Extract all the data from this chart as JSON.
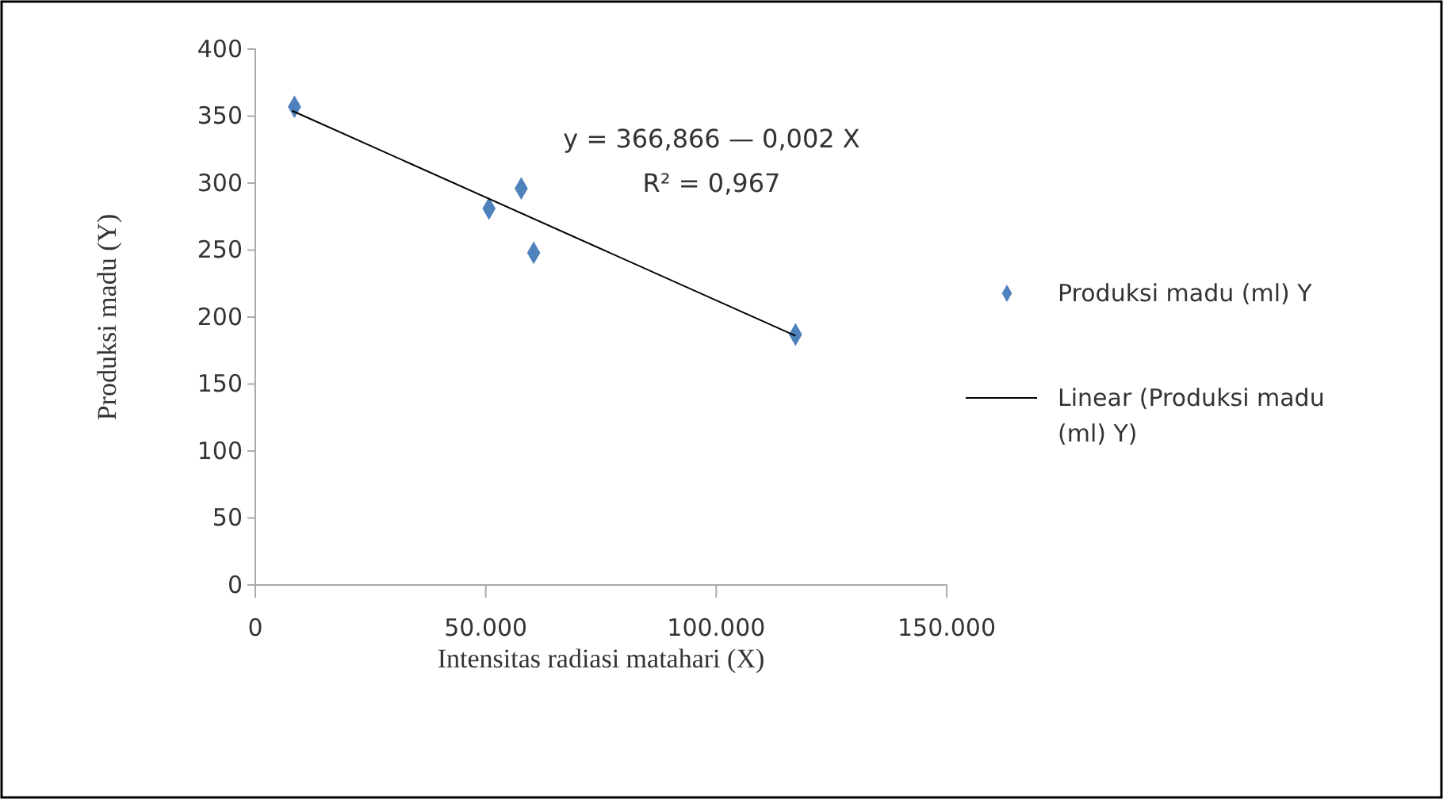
{
  "chart_data": {
    "type": "scatter",
    "xlabel": "Intensitas radiasi matahari (X)",
    "ylabel": "Produksi madu (Y)",
    "xlim": [
      0,
      150000
    ],
    "xticks": [
      {
        "value": 0,
        "label": "0"
      },
      {
        "value": 50000,
        "label": "50.000"
      },
      {
        "value": 100000,
        "label": "100.000"
      },
      {
        "value": 150000,
        "label": "150.000"
      }
    ],
    "ylim": [
      0,
      400
    ],
    "yticks": [
      0,
      50,
      100,
      150,
      200,
      250,
      300,
      350,
      400
    ],
    "series": [
      {
        "name": "Produksi madu (ml) Y",
        "color": "#4f81bd",
        "marker": "diamond",
        "x": [
          8500,
          50700,
          57700,
          60400,
          117200
        ],
        "values": [
          357,
          281,
          296,
          248,
          187
        ]
      },
      {
        "name": "Linear (Produksi madu (ml) Y)",
        "color": "#000000",
        "type": "line",
        "marker": "none",
        "line_style": "solid",
        "x": [
          8000,
          117200
        ],
        "values": [
          354,
          186
        ]
      }
    ],
    "annotations": [
      "y = 366,866 — 0,002 X",
      "R² = 0,967"
    ],
    "legend": "right",
    "grid": false
  }
}
